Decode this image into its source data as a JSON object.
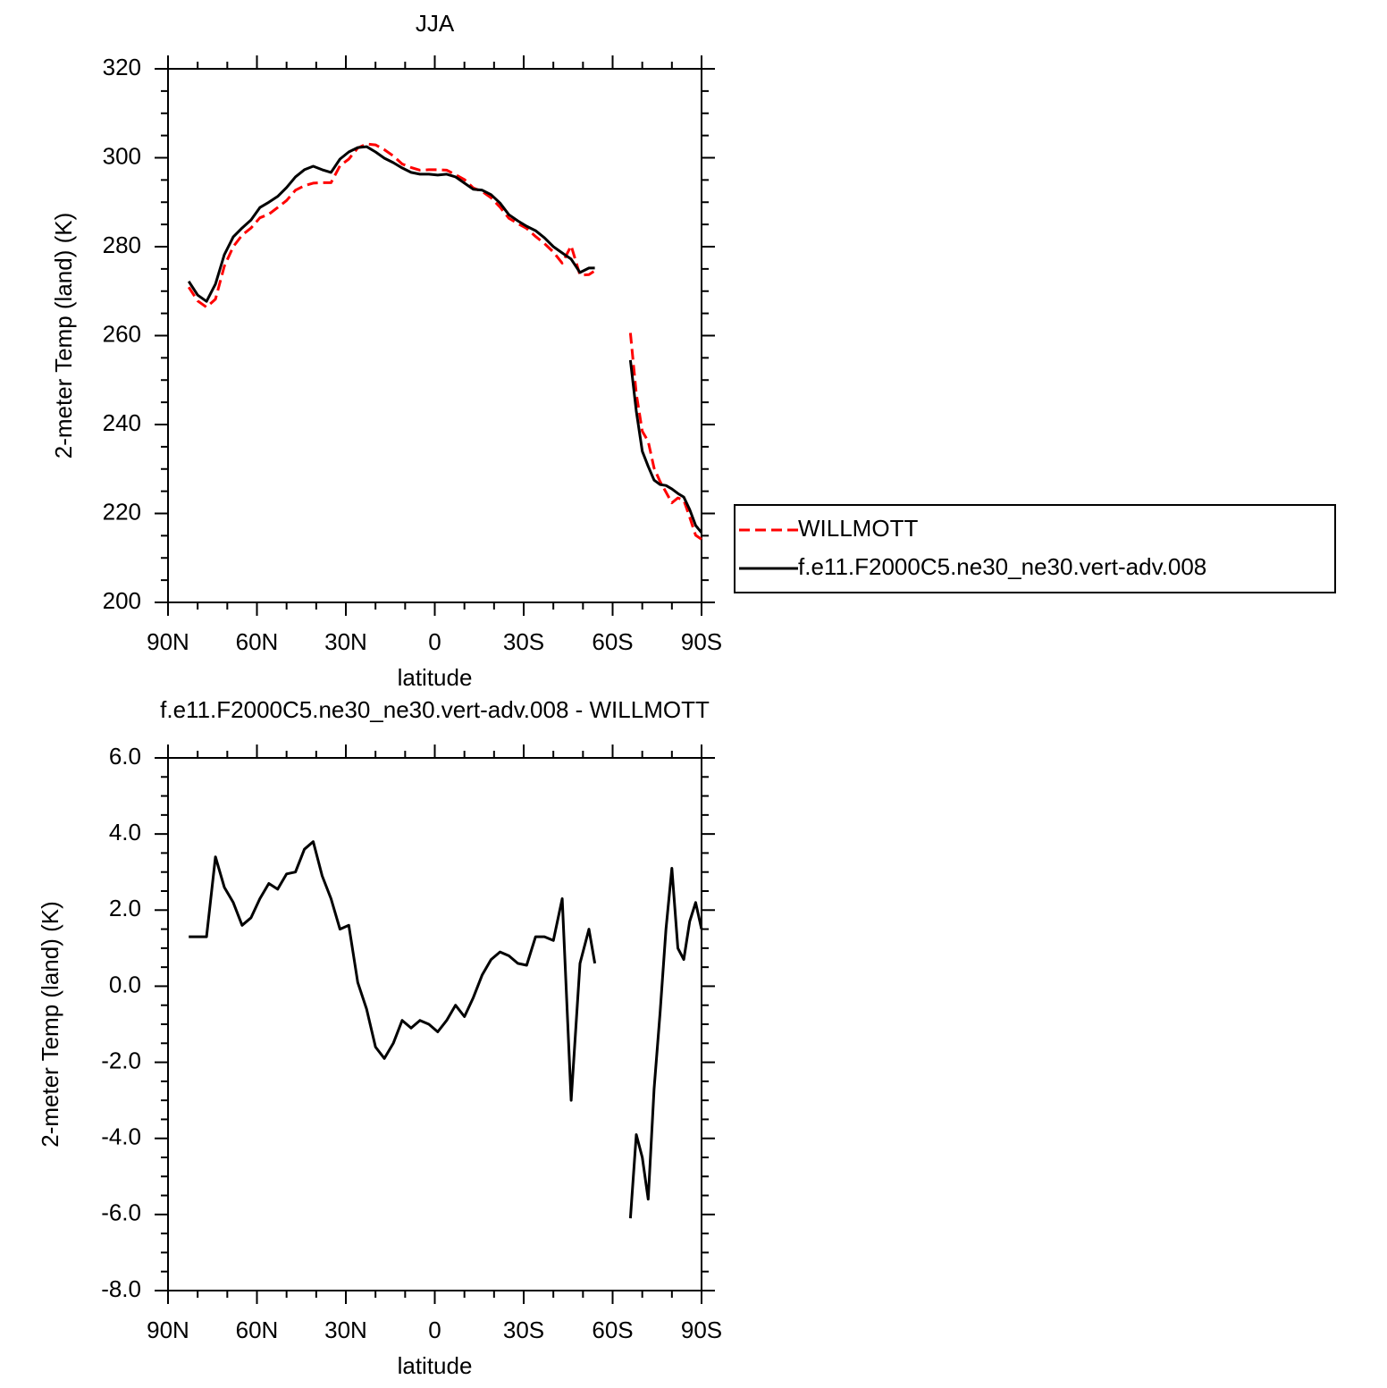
{
  "chart_data": [
    {
      "type": "line",
      "title": "JJA",
      "xlabel": "latitude",
      "ylabel": "2-meter Temp (land) (K)",
      "x": [
        83,
        80,
        77,
        74,
        71,
        68,
        65,
        62,
        59,
        56,
        53,
        50,
        47,
        44,
        41,
        38,
        35,
        32,
        29,
        26,
        23,
        20,
        17,
        14,
        11,
        8,
        5,
        2,
        -1,
        -4,
        -7,
        -10,
        -13,
        -16,
        -19,
        -22,
        -25,
        -28,
        -31,
        -34,
        -37,
        -40,
        -43,
        -46,
        -49,
        -52,
        -54,
        -60,
        -66,
        -68,
        -70,
        -72,
        -74,
        -76,
        -78,
        -80,
        -82,
        -84,
        -86,
        -88,
        -90
      ],
      "series": [
        {
          "name": "WILLMOTT",
          "color": "#ff0000",
          "dashed": true,
          "values": [
            270.9,
            267.8,
            266.4,
            268.2,
            275.6,
            280.0,
            282.6,
            284.2,
            286.5,
            287.3,
            288.8,
            290.4,
            292.7,
            293.7,
            294.3,
            294.4,
            294.4,
            298.2,
            299.7,
            302.2,
            303.1,
            302.9,
            301.8,
            300.4,
            298.6,
            297.8,
            297.2,
            297.3,
            297.3,
            297.2,
            296.2,
            295.1,
            293.2,
            292.4,
            291.0,
            288.9,
            286.4,
            285.2,
            284.1,
            282.3,
            280.7,
            278.8,
            276.3,
            280.2,
            273.6,
            273.7,
            274.6,
            null,
            260.6,
            246.9,
            238.5,
            236.2,
            230.2,
            227.2,
            224.8,
            222.4,
            223.5,
            223.0,
            219.2,
            215.1,
            214.2
          ]
        },
        {
          "name": "f.e11.F2000C5.ne30_ne30.vert-adv.008",
          "color": "#000000",
          "dashed": false,
          "values": [
            272.2,
            269.1,
            267.7,
            271.6,
            278.2,
            282.2,
            284.2,
            286.0,
            288.8,
            290.0,
            291.3,
            293.3,
            295.7,
            297.3,
            298.1,
            297.3,
            296.7,
            299.7,
            301.3,
            302.3,
            302.5,
            301.3,
            299.9,
            298.9,
            297.7,
            296.7,
            296.3,
            296.3,
            296.1,
            296.3,
            295.7,
            294.3,
            292.9,
            292.7,
            291.7,
            289.8,
            287.2,
            285.8,
            284.6,
            283.6,
            282.0,
            280.0,
            278.6,
            277.2,
            274.2,
            275.2,
            275.2,
            null,
            254.5,
            243.0,
            234.0,
            230.6,
            227.5,
            226.5,
            226.3,
            225.5,
            224.5,
            223.7,
            220.9,
            217.3,
            215.7
          ]
        }
      ],
      "xlim": [
        90,
        -90
      ],
      "xticks": [
        {
          "value": 90,
          "label": "90N"
        },
        {
          "value": 60,
          "label": "60N"
        },
        {
          "value": 30,
          "label": "30N"
        },
        0,
        {
          "value": -30,
          "label": "30S"
        },
        {
          "value": -60,
          "label": "60S"
        },
        {
          "value": -90,
          "label": "90S"
        }
      ],
      "ylim": [
        200,
        320
      ],
      "yticks": [
        200,
        220,
        240,
        260,
        280,
        300,
        320
      ],
      "legend": "right"
    },
    {
      "type": "line",
      "title": "f.e11.F2000C5.ne30_ne30.vert-adv.008 - WILLMOTT",
      "xlabel": "latitude",
      "ylabel": "2-meter Temp (land) (K)",
      "x": [
        83,
        80,
        77,
        74,
        71,
        68,
        65,
        62,
        59,
        56,
        53,
        50,
        47,
        44,
        41,
        38,
        35,
        32,
        29,
        26,
        23,
        20,
        17,
        14,
        11,
        8,
        5,
        2,
        -1,
        -4,
        -7,
        -10,
        -13,
        -16,
        -19,
        -22,
        -25,
        -28,
        -31,
        -34,
        -37,
        -40,
        -43,
        -46,
        -49,
        -52,
        -54,
        -60,
        -66,
        -68,
        -70,
        -72,
        -74,
        -76,
        -78,
        -80,
        -82,
        -84,
        -86,
        -88,
        -90
      ],
      "series": [
        {
          "color": "#000000",
          "dashed": false,
          "values": [
            1.3,
            1.3,
            1.3,
            3.4,
            2.6,
            2.2,
            1.6,
            1.8,
            2.3,
            2.7,
            2.55,
            2.95,
            3.0,
            3.6,
            3.8,
            2.9,
            2.3,
            1.5,
            1.6,
            0.1,
            -0.6,
            -1.6,
            -1.9,
            -1.5,
            -0.9,
            -1.1,
            -0.9,
            -1.0,
            -1.2,
            -0.9,
            -0.5,
            -0.8,
            -0.3,
            0.3,
            0.7,
            0.9,
            0.8,
            0.6,
            0.55,
            1.3,
            1.3,
            1.2,
            2.3,
            -3.0,
            0.6,
            1.5,
            0.6,
            null,
            -6.1,
            -3.9,
            -4.5,
            -5.6,
            -2.7,
            -0.7,
            1.5,
            3.1,
            1.0,
            0.7,
            1.7,
            2.2,
            1.5
          ]
        }
      ],
      "xlim": [
        90,
        -90
      ],
      "xticks": [
        {
          "value": 90,
          "label": "90N"
        },
        {
          "value": 60,
          "label": "60N"
        },
        {
          "value": 30,
          "label": "30N"
        },
        0,
        {
          "value": -30,
          "label": "30S"
        },
        {
          "value": -60,
          "label": "60S"
        },
        {
          "value": -90,
          "label": "90S"
        }
      ],
      "ylim": [
        -8,
        6
      ],
      "yticks": [
        {
          "value": -8,
          "label": "-8.0"
        },
        {
          "value": -6,
          "label": "-6.0"
        },
        {
          "value": -4,
          "label": "-4.0"
        },
        {
          "value": -2,
          "label": "-2.0"
        },
        {
          "value": 0,
          "label": "0.0"
        },
        {
          "value": 2,
          "label": "2.0"
        },
        {
          "value": 4,
          "label": "4.0"
        },
        {
          "value": 6,
          "label": "6.0"
        }
      ]
    }
  ]
}
